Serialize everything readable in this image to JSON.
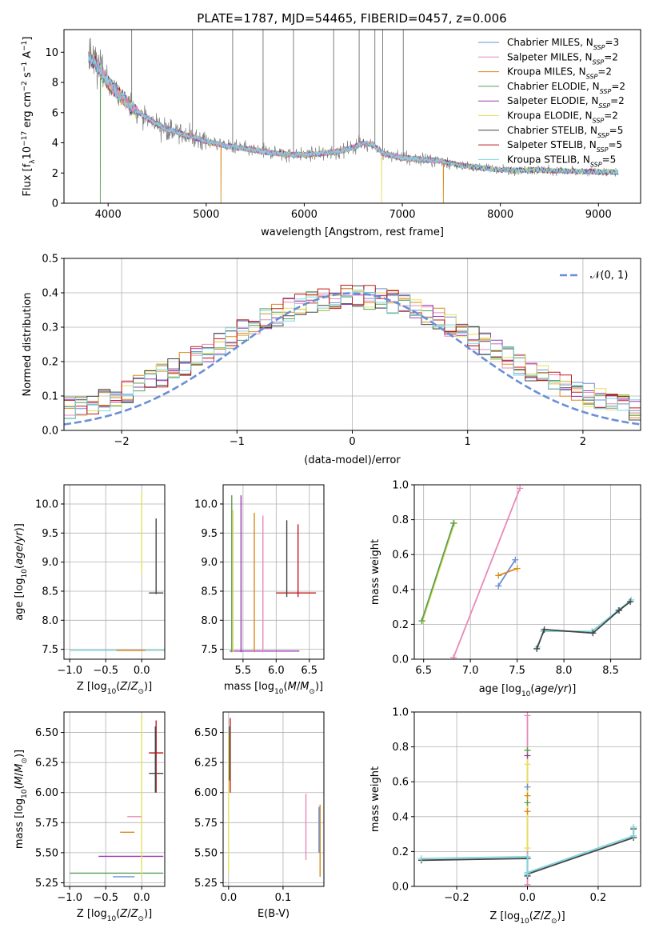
{
  "figure_title": "PLATE=1787, MJD=54465, FIBERID=0457, z=0.006",
  "colors": {
    "Chabrier MILES": "#6a8fd6",
    "Salpeter MILES": "#e889b9",
    "Kroupa MILES": "#d98a1b",
    "Chabrier ELODIE": "#5a9e5a",
    "Salpeter ELODIE": "#9b3bb6",
    "Kroupa ELODIE": "#e6e05a",
    "Chabrier STELIB": "#444444",
    "Salpeter STELIB": "#c21a1a",
    "Kroupa STELIB": "#7fd6dd",
    "data": "#7f7f7f",
    "grid": "#b0b0b0"
  },
  "chart_data": [
    {
      "id": "spectrum",
      "type": "line",
      "xlabel": "wavelength [Angstrom, rest frame]",
      "ylabel": "Flux [f_λ 10^-17 erg cm^-2 s^-1 A^-1]",
      "xlim": [
        3550,
        9430
      ],
      "ylim": [
        0,
        11.5
      ],
      "xticks": [
        "4000",
        "5000",
        "6000",
        "7000",
        "8000",
        "9000"
      ],
      "xtick_values": [
        4000,
        5000,
        6000,
        7000,
        8000,
        9000
      ],
      "yticks": [
        "0",
        "2",
        "4",
        "6",
        "8",
        "10"
      ],
      "ytick_values": [
        0,
        2,
        4,
        6,
        8,
        10
      ],
      "grid": false,
      "legend_position": "top-right",
      "legend": [
        {
          "name": "Chabrier MILES",
          "n": "3"
        },
        {
          "name": "Salpeter MILES",
          "n": "2"
        },
        {
          "name": "Kroupa MILES",
          "n": "2"
        },
        {
          "name": "Chabrier ELODIE",
          "n": "2"
        },
        {
          "name": "Salpeter ELODIE",
          "n": "2"
        },
        {
          "name": "Kroupa ELODIE",
          "n": "2"
        },
        {
          "name": "Chabrier STELIB",
          "n": "5"
        },
        {
          "name": "Salpeter STELIB",
          "n": "5"
        },
        {
          "name": "Kroupa STELIB",
          "n": "5"
        }
      ],
      "legend_n_label": "N",
      "legend_n_sub": "SSP",
      "continuum": {
        "x": [
          3800,
          3900,
          4000,
          4100,
          4200,
          4300,
          4400,
          4600,
          4800,
          5000,
          5200,
          5400,
          5600,
          5800,
          6000,
          6200,
          6400,
          6500,
          6600,
          6700,
          6800,
          7000,
          7200,
          7400,
          7600,
          8000,
          8400,
          8800,
          9200
        ],
        "y": [
          9.8,
          9.0,
          8.0,
          7.3,
          6.6,
          6.1,
          5.6,
          4.9,
          4.5,
          4.1,
          3.8,
          3.6,
          3.4,
          3.25,
          3.2,
          3.3,
          3.5,
          3.7,
          4.0,
          3.9,
          3.3,
          3.0,
          2.9,
          2.8,
          2.5,
          2.2,
          2.2,
          2.1,
          2.05
        ]
      },
      "emission_spikes_x": [
        4240,
        4860,
        5270,
        5580,
        5890,
        6300,
        6560,
        6720,
        6800,
        7010
      ],
      "model_drop_x": {
        "Kroupa MILES": [
          5150,
          7420
        ],
        "Chabrier ELODIE": [
          3920
        ],
        "Kroupa ELODIE": [
          6790
        ]
      }
    },
    {
      "id": "residuals",
      "type": "line",
      "xlabel": "(data-model)/error",
      "ylabel": "Normed distribution",
      "xlim": [
        -2.5,
        2.5
      ],
      "ylim": [
        0,
        0.5
      ],
      "xticks": [
        "−2",
        "−1",
        "0",
        "1",
        "2"
      ],
      "xtick_values": [
        -2,
        -1,
        0,
        1,
        2
      ],
      "yticks": [
        "0.0",
        "0.1",
        "0.2",
        "0.3",
        "0.4",
        "0.5"
      ],
      "ytick_values": [
        0,
        0.1,
        0.2,
        0.3,
        0.4,
        0.5
      ],
      "grid": true,
      "legend_position": "top-right",
      "gaussian_label": "𝒩(0, 1)",
      "bin_width": 0.1,
      "bin_start": -2.5
    },
    {
      "id": "age-vs-Z",
      "type": "scatter",
      "xlabel": "Z [log10(Z/Z⊙)]",
      "ylabel": "age  [log10(age/yr)]",
      "xlim": [
        -1.08,
        0.32
      ],
      "ylim": [
        7.33,
        10.33
      ],
      "xticks": [
        "−1.0",
        "−0.5",
        "0.0"
      ],
      "xtick_values": [
        -1.0,
        -0.5,
        0.0
      ],
      "yticks": [
        "7.5",
        "8.0",
        "8.5",
        "9.0",
        "9.5",
        "10.0"
      ],
      "ytick_values": [
        7.5,
        8.0,
        8.5,
        9.0,
        9.5,
        10.0
      ],
      "grid": true,
      "points": [
        {
          "x": 0.0,
          "y": 7.48,
          "xerr": 1.0,
          "yerr": 0.0,
          "model": "Kroupa STELIB"
        },
        {
          "x": -0.15,
          "y": 7.48,
          "xerr": 0.2,
          "yerr": 0.0,
          "model": "Kroupa MILES"
        },
        {
          "x": 0.0,
          "y": 9.5,
          "xerr": 0.0,
          "yerr": 0.7,
          "model": "Kroupa ELODIE"
        },
        {
          "x": 0.2,
          "y": 8.47,
          "xerr": 0.1,
          "yerr": 0.0,
          "model": "Chabrier STELIB"
        },
        {
          "x": 0.2,
          "y": 9.1,
          "xerr": 0.0,
          "yerr": 0.65,
          "model": "Chabrier STELIB"
        }
      ]
    },
    {
      "id": "age-vs-mass",
      "type": "scatter",
      "xlabel": "mass [log10(M/M⊙)]",
      "ylabel": "",
      "xlim": [
        5.2,
        6.72
      ],
      "ylim": [
        7.33,
        10.33
      ],
      "xticks": [
        "5.5",
        "6.0",
        "6.5"
      ],
      "xtick_values": [
        5.5,
        6.0,
        6.5
      ],
      "yticks": [
        "7.5",
        "8.0",
        "8.5",
        "9.0",
        "9.5",
        "10.0"
      ],
      "ytick_values": [
        7.5,
        8.0,
        8.5,
        9.0,
        9.5,
        10.0
      ],
      "grid": true,
      "vlines": [
        {
          "x": 5.33,
          "y0": 7.45,
          "y1": 10.15,
          "model": "Chabrier ELODIE"
        },
        {
          "x": 5.35,
          "y0": 7.45,
          "y1": 9.9,
          "model": "Kroupa ELODIE"
        },
        {
          "x": 5.47,
          "y0": 7.45,
          "y1": 10.15,
          "model": "Salpeter ELODIE"
        },
        {
          "x": 5.67,
          "y0": 7.45,
          "y1": 9.85,
          "model": "Kroupa MILES"
        },
        {
          "x": 5.8,
          "y0": 7.45,
          "y1": 9.8,
          "model": "Salpeter MILES"
        },
        {
          "x": 6.16,
          "y0": 8.4,
          "y1": 9.72,
          "model": "Chabrier STELIB"
        },
        {
          "x": 6.33,
          "y0": 8.4,
          "y1": 9.65,
          "model": "Salpeter STELIB"
        }
      ],
      "hlines": [
        {
          "y": 7.47,
          "x0": 5.3,
          "x1": 6.35,
          "model": "Salpeter ELODIE"
        },
        {
          "y": 8.47,
          "x0": 6.0,
          "x1": 6.6,
          "model": "Salpeter STELIB"
        }
      ]
    },
    {
      "id": "massweight-vs-age",
      "type": "line",
      "xlabel": "age  [log10(age/yr)]",
      "ylabel": "mass weight",
      "xlim": [
        6.4,
        8.82
      ],
      "ylim": [
        0,
        1
      ],
      "xticks": [
        "6.5",
        "7.0",
        "7.5",
        "8.0",
        "8.5"
      ],
      "xtick_values": [
        6.5,
        7.0,
        7.5,
        8.0,
        8.5
      ],
      "yticks": [
        "0.0",
        "0.2",
        "0.4",
        "0.6",
        "0.8",
        "1.0"
      ],
      "ytick_values": [
        0,
        0.2,
        0.4,
        0.6,
        0.8,
        1.0
      ],
      "grid": true,
      "series": [
        {
          "model": "Kroupa ELODIE",
          "x": [
            6.49,
            6.83
          ],
          "y": [
            0.22,
            0.78
          ]
        },
        {
          "model": "Chabrier ELODIE",
          "x": [
            6.48,
            6.82
          ],
          "y": [
            0.22,
            0.78
          ]
        },
        {
          "model": "Salpeter MILES",
          "x": [
            6.82,
            7.53
          ],
          "y": [
            0.01,
            0.98
          ]
        },
        {
          "model": "Chabrier MILES",
          "x": [
            7.3,
            7.48
          ],
          "y": [
            0.42,
            0.57
          ]
        },
        {
          "model": "Kroupa MILES",
          "x": [
            7.3,
            7.5
          ],
          "y": [
            0.48,
            0.52
          ]
        },
        {
          "model": "Kroupa STELIB",
          "x": [
            7.72,
            7.78,
            8.3,
            8.58,
            8.72
          ],
          "y": [
            0.07,
            0.16,
            0.16,
            0.28,
            0.34
          ]
        },
        {
          "model": "Chabrier STELIB",
          "x": [
            7.71,
            7.79,
            8.31,
            8.59,
            8.71
          ],
          "y": [
            0.06,
            0.17,
            0.15,
            0.28,
            0.33
          ]
        }
      ]
    },
    {
      "id": "mass-vs-Z",
      "type": "scatter",
      "xlabel": "Z [log10(Z/Z⊙)]",
      "ylabel": "mass [log10(M/M⊙)]",
      "xlim": [
        -1.08,
        0.32
      ],
      "ylim": [
        5.22,
        6.67
      ],
      "xticks": [
        "−1.0",
        "−0.5",
        "0.0"
      ],
      "xtick_values": [
        -1.0,
        -0.5,
        0.0
      ],
      "yticks": [
        "5.25",
        "5.50",
        "5.75",
        "6.00",
        "6.25",
        "6.50"
      ],
      "ytick_values": [
        5.25,
        5.5,
        5.75,
        6.0,
        6.25,
        6.5
      ],
      "grid": true,
      "hlines": [
        {
          "y": 5.33,
          "x0": -1.0,
          "x1": 0.3,
          "model": "Chabrier ELODIE"
        },
        {
          "y": 5.3,
          "x0": -0.4,
          "x1": -0.1,
          "model": "Chabrier MILES"
        },
        {
          "y": 5.47,
          "x0": -0.6,
          "x1": 0.3,
          "model": "Salpeter ELODIE"
        },
        {
          "y": 5.67,
          "x0": -0.3,
          "x1": -0.1,
          "model": "Kroupa MILES"
        },
        {
          "y": 5.8,
          "x0": -0.2,
          "x1": 0.0,
          "model": "Salpeter MILES"
        },
        {
          "y": 6.16,
          "x0": 0.1,
          "x1": 0.3,
          "model": "Chabrier STELIB"
        },
        {
          "y": 6.33,
          "x0": 0.1,
          "x1": 0.3,
          "model": "Salpeter STELIB"
        }
      ],
      "vlines": [
        {
          "x": 0.0,
          "y0": 5.3,
          "y1": 6.65,
          "model": "Kroupa ELODIE"
        },
        {
          "x": 0.2,
          "y0": 6.0,
          "y1": 6.6,
          "model": "Salpeter STELIB"
        },
        {
          "x": 0.19,
          "y0": 6.0,
          "y1": 6.55,
          "model": "Chabrier STELIB"
        }
      ]
    },
    {
      "id": "mass-vs-EBV",
      "type": "scatter",
      "xlabel": "E(B-V)",
      "ylabel": "",
      "xlim": [
        -0.01,
        0.175
      ],
      "ylim": [
        5.22,
        6.67
      ],
      "xticks": [
        "0.0",
        "0.1"
      ],
      "xtick_values": [
        0.0,
        0.1
      ],
      "yticks": [
        "5.25",
        "5.50",
        "5.75",
        "6.00",
        "6.25",
        "6.50"
      ],
      "ytick_values": [
        5.25,
        5.5,
        5.75,
        6.0,
        6.25,
        6.5
      ],
      "grid": true,
      "vlines": [
        {
          "x": 0.0,
          "y0": 5.33,
          "y1": 6.5,
          "model": "Kroupa ELODIE"
        },
        {
          "x": 0.003,
          "y0": 6.0,
          "y1": 6.62,
          "model": "Salpeter STELIB"
        },
        {
          "x": 0.002,
          "y0": 6.1,
          "y1": 6.55,
          "model": "Chabrier STELIB"
        },
        {
          "x": 0.142,
          "y0": 5.44,
          "y1": 5.99,
          "model": "Salpeter MILES"
        },
        {
          "x": 0.168,
          "y0": 5.3,
          "y1": 5.9,
          "model": "Kroupa MILES"
        },
        {
          "x": 0.166,
          "y0": 5.5,
          "y1": 5.88,
          "model": "Chabrier MILES"
        }
      ]
    },
    {
      "id": "massweight-vs-Z",
      "type": "line",
      "xlabel": "Z [log10(Z/Z⊙)]",
      "ylabel": "mass weight",
      "xlim": [
        -0.32,
        0.32
      ],
      "ylim": [
        0,
        1
      ],
      "xticks": [
        "−0.2",
        "0.0",
        "0.2"
      ],
      "xtick_values": [
        -0.2,
        0.0,
        0.2
      ],
      "yticks": [
        "0.0",
        "0.2",
        "0.4",
        "0.6",
        "0.8",
        "1.0"
      ],
      "ytick_values": [
        0,
        0.2,
        0.4,
        0.6,
        0.8,
        1.0
      ],
      "grid": true,
      "series": [
        {
          "model": "Salpeter MILES",
          "x": [
            0.0,
            0.0
          ],
          "y": [
            0.01,
            0.98
          ]
        },
        {
          "model": "Kroupa ELODIE",
          "x": [
            0.0,
            0.0
          ],
          "y": [
            0.22,
            0.78
          ]
        },
        {
          "model": "Chabrier STELIB",
          "x": [
            -0.3,
            0.0,
            0.0,
            0.0,
            0.3,
            0.3
          ],
          "y": [
            0.15,
            0.16,
            0.06,
            0.07,
            0.28,
            0.33
          ]
        },
        {
          "model": "Kroupa STELIB",
          "x": [
            -0.3,
            0.0,
            0.0,
            0.0,
            0.3,
            0.3
          ],
          "y": [
            0.16,
            0.17,
            0.07,
            0.08,
            0.29,
            0.34
          ]
        }
      ],
      "markers_at_zero": [
        0.43,
        0.48,
        0.52,
        0.57,
        0.7,
        0.75,
        0.78
      ]
    }
  ]
}
